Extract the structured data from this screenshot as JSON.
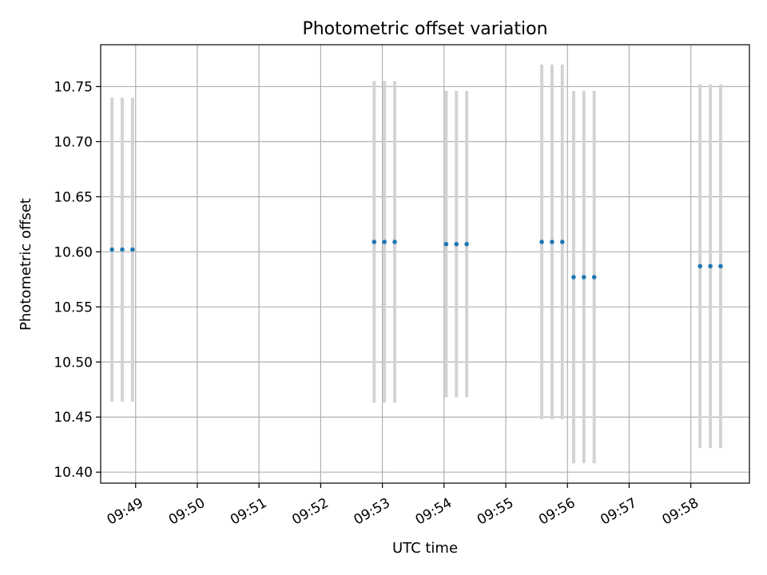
{
  "chart_data": {
    "type": "scatter",
    "title": "Photometric offset variation",
    "xlabel": "UTC time",
    "ylabel": "Photometric offset",
    "grid": true,
    "xlim": [
      "09:48:26",
      "09:58:57"
    ],
    "ylim": [
      10.39,
      10.788
    ],
    "x_ticks": [
      "09:49",
      "09:50",
      "09:51",
      "09:52",
      "09:53",
      "09:54",
      "09:55",
      "09:56",
      "09:57",
      "09:58"
    ],
    "y_ticks": [
      "10.40",
      "10.45",
      "10.50",
      "10.55",
      "10.60",
      "10.65",
      "10.70",
      "10.75"
    ],
    "series": [
      {
        "marker_color": "#1f77b4",
        "errorbar_color": "#d3d3d3",
        "points": [
          {
            "x": "09:48:37",
            "y": 10.602,
            "yerr": 0.138
          },
          {
            "x": "09:48:47",
            "y": 10.602,
            "yerr": 0.138
          },
          {
            "x": "09:48:57",
            "y": 10.602,
            "yerr": 0.138
          },
          {
            "x": "09:52:52",
            "y": 10.609,
            "yerr": 0.146
          },
          {
            "x": "09:53:02",
            "y": 10.609,
            "yerr": 0.146
          },
          {
            "x": "09:53:12",
            "y": 10.609,
            "yerr": 0.146
          },
          {
            "x": "09:54:02",
            "y": 10.607,
            "yerr": 0.139
          },
          {
            "x": "09:54:12",
            "y": 10.607,
            "yerr": 0.139
          },
          {
            "x": "09:54:22",
            "y": 10.607,
            "yerr": 0.139
          },
          {
            "x": "09:55:35",
            "y": 10.609,
            "yerr": 0.161
          },
          {
            "x": "09:55:45",
            "y": 10.609,
            "yerr": 0.161
          },
          {
            "x": "09:55:55",
            "y": 10.609,
            "yerr": 0.161
          },
          {
            "x": "09:56:06",
            "y": 10.577,
            "yerr": 0.169
          },
          {
            "x": "09:56:16",
            "y": 10.577,
            "yerr": 0.169
          },
          {
            "x": "09:56:26",
            "y": 10.577,
            "yerr": 0.169
          },
          {
            "x": "09:58:09",
            "y": 10.587,
            "yerr": 0.165
          },
          {
            "x": "09:58:19",
            "y": 10.587,
            "yerr": 0.165
          },
          {
            "x": "09:58:29",
            "y": 10.587,
            "yerr": 0.165
          }
        ]
      }
    ]
  }
}
